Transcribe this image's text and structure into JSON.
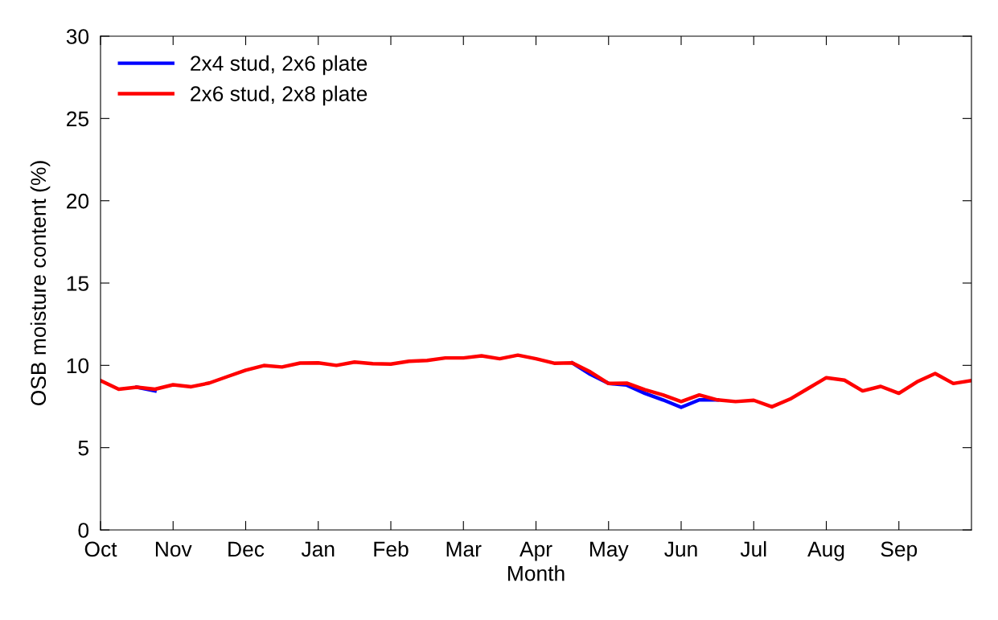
{
  "chart_data": {
    "type": "line",
    "xlabel": "Month",
    "ylabel": "OSB moisture content (%)",
    "categories": [
      "Oct",
      null,
      null,
      null,
      "Nov",
      null,
      null,
      null,
      "Dec",
      null,
      null,
      null,
      "Jan",
      null,
      null,
      null,
      "Feb",
      null,
      null,
      null,
      "Mar",
      null,
      null,
      null,
      "Apr",
      null,
      null,
      null,
      "May",
      null,
      null,
      null,
      "Jun",
      null,
      null,
      null,
      "Jul",
      null,
      null,
      null,
      "Aug",
      null,
      null,
      null,
      "Sep",
      null,
      null,
      null,
      null
    ],
    "ylim": [
      0,
      30
    ],
    "yticks": [
      0,
      5,
      10,
      15,
      20,
      25,
      30
    ],
    "legend": "top left",
    "grid": false,
    "marker": "none",
    "line_style": "solid",
    "series": [
      {
        "name": "2x4 stud, 2x6 plate",
        "color": "#0000ff",
        "values": [
          null,
          null,
          8.67,
          8.45,
          null,
          null,
          null,
          null,
          null,
          null,
          null,
          null,
          null,
          null,
          null,
          null,
          null,
          null,
          null,
          null,
          null,
          null,
          null,
          null,
          null,
          null,
          10.15,
          9.45,
          8.9,
          8.8,
          8.3,
          7.9,
          7.45,
          7.9,
          7.9,
          null,
          null,
          null,
          null,
          null,
          null,
          null,
          null,
          null,
          null,
          null,
          null,
          null,
          null
        ]
      },
      {
        "name": "2x6 stud, 2x8 plate",
        "color": "#ff0000",
        "values": [
          9.08,
          8.55,
          8.67,
          8.55,
          8.82,
          8.7,
          8.93,
          9.32,
          9.7,
          9.99,
          9.9,
          10.14,
          10.15,
          10.0,
          10.2,
          10.1,
          10.08,
          10.25,
          10.3,
          10.45,
          10.45,
          10.58,
          10.4,
          10.62,
          10.4,
          10.13,
          10.15,
          9.6,
          8.9,
          8.92,
          8.52,
          8.2,
          7.8,
          8.2,
          7.9,
          7.8,
          7.88,
          7.48,
          7.95,
          8.6,
          9.25,
          9.1,
          8.45,
          8.72,
          8.3,
          9.0,
          9.5,
          8.9,
          9.08
        ]
      }
    ]
  }
}
